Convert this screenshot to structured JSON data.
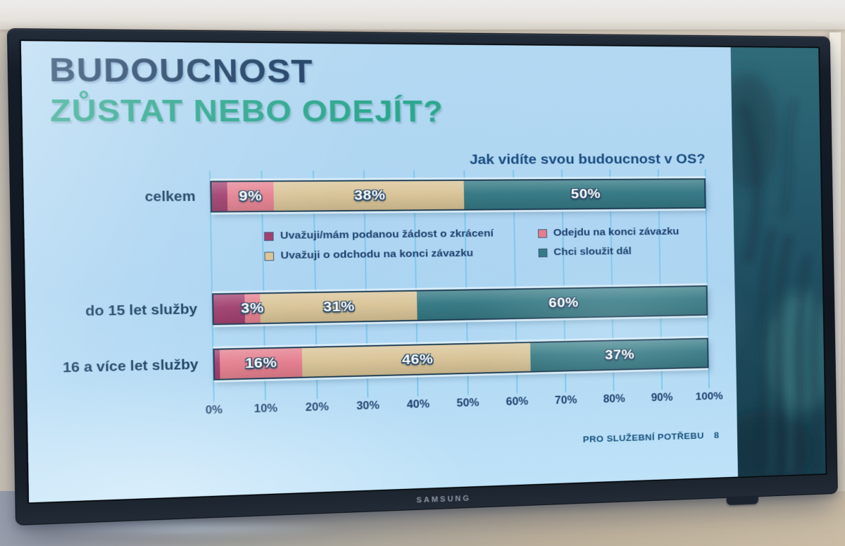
{
  "tv": {
    "brand_label": "SAMSUNG"
  },
  "slide": {
    "title_line1": "BUDOUCNOST",
    "title_line2": "ZŮSTAT NEBO ODEJÍT?",
    "footer_label": "PRO SLUŽEBNÍ POTŘEBU",
    "footer_page": "8"
  },
  "chart_data": {
    "type": "bar",
    "orientation": "horizontal",
    "stacked": true,
    "title": "Jak vidíte svou budoucnost v OS?",
    "categories": [
      "celkem",
      "do 15 let služby",
      "16 a více let služby"
    ],
    "series": [
      {
        "name": "Uvažuji/mám podanou žádost o zkrácení",
        "color": "#9e3a6b",
        "values": [
          3,
          6,
          1
        ]
      },
      {
        "name": "Odejdu na konci závazku",
        "color": "#e57e8e",
        "values": [
          9,
          3,
          16
        ]
      },
      {
        "name": "Uvažuji o odchodu na konci závazku",
        "color": "#d9c497",
        "values": [
          38,
          31,
          46
        ]
      },
      {
        "name": "Chci sloužit dál",
        "color": "#357984",
        "values": [
          50,
          60,
          37
        ]
      }
    ],
    "data_labels": [
      [
        "",
        "9%",
        "38%",
        "50%"
      ],
      [
        "",
        "3%",
        "31%",
        "60%"
      ],
      [
        "",
        "16%",
        "46%",
        "37%"
      ]
    ],
    "x_ticks": [
      "0%",
      "10%",
      "20%",
      "30%",
      "40%",
      "50%",
      "60%",
      "70%",
      "80%",
      "90%",
      "100%"
    ],
    "xlim": [
      0,
      100
    ],
    "grid": true,
    "legend_position": "inside-upper-left",
    "accent_colors": {
      "title_navy": "#1d3e63",
      "title_teal": "#2ca78e",
      "text_navy": "#1b3e6b"
    }
  }
}
